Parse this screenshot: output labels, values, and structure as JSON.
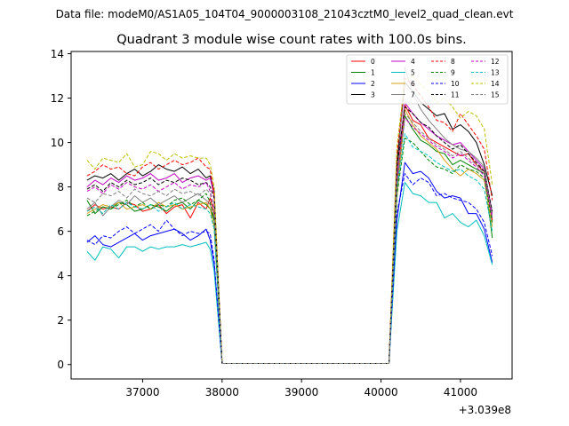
{
  "suptitle": "Data file: modeM0/AS1A05_104T04_9000003108_21043cztM0_level2_quad_clean.evt",
  "chart_data": {
    "type": "line",
    "title": "Quadrant 3 module wise count rates with 100.0s bins.",
    "xlabel": "",
    "ylabel": "",
    "x_offset_label": "+3.039e8",
    "xlim": [
      36100,
      41650
    ],
    "ylim": [
      -0.65,
      14.1
    ],
    "x_ticks": [
      37000,
      38000,
      39000,
      40000,
      41000
    ],
    "y_ticks": [
      0,
      2,
      4,
      6,
      8,
      10,
      12,
      14
    ],
    "grid": false,
    "legend_position": "top-right",
    "legend_columns": 4,
    "x": [
      36300,
      36400,
      36500,
      36600,
      36700,
      36800,
      36900,
      37000,
      37100,
      37200,
      37300,
      37400,
      37500,
      37600,
      37700,
      37800,
      37850,
      37900,
      38000,
      38100,
      38200,
      38300,
      38400,
      38500,
      38600,
      38700,
      38800,
      38900,
      39000,
      39100,
      39200,
      39300,
      39400,
      39500,
      39600,
      39700,
      39800,
      39900,
      40000,
      40100,
      40200,
      40300,
      40400,
      40500,
      40600,
      40700,
      40800,
      40900,
      41000,
      41100,
      41200,
      41300,
      41400
    ],
    "series": [
      {
        "name": "0",
        "color": "#ff0000",
        "dash": false,
        "values": [
          6.9,
          7.2,
          7.0,
          7.1,
          7.0,
          7.3,
          7.2,
          6.9,
          7.0,
          7.2,
          6.8,
          7.1,
          7.2,
          6.6,
          7.3,
          7.0,
          7.5,
          6.8,
          0.05,
          0.05,
          0.05,
          0.05,
          0.05,
          0.05,
          0.05,
          0.05,
          0.05,
          0.05,
          0.05,
          0.05,
          0.05,
          0.05,
          0.05,
          0.05,
          0.05,
          0.05,
          0.05,
          0.05,
          0.05,
          0.05,
          8.0,
          11.7,
          11.0,
          10.8,
          10.2,
          10.0,
          9.8,
          9.6,
          9.4,
          9.5,
          9.0,
          8.7,
          6.5
        ]
      },
      {
        "name": "1",
        "color": "#008000",
        "dash": false,
        "values": [
          7.4,
          6.8,
          7.1,
          7.0,
          7.3,
          7.2,
          6.9,
          7.0,
          7.2,
          7.1,
          6.9,
          7.2,
          7.3,
          7.0,
          7.4,
          7.2,
          7.0,
          6.5,
          0.05,
          0.05,
          0.05,
          0.05,
          0.05,
          0.05,
          0.05,
          0.05,
          0.05,
          0.05,
          0.05,
          0.05,
          0.05,
          0.05,
          0.05,
          0.05,
          0.05,
          0.05,
          0.05,
          0.05,
          0.05,
          0.05,
          7.8,
          11.2,
          10.6,
          10.1,
          9.9,
          9.6,
          9.5,
          9.0,
          9.2,
          9.0,
          8.8,
          8.6,
          5.7
        ]
      },
      {
        "name": "2",
        "color": "#0000ff",
        "dash": false,
        "values": [
          5.5,
          5.8,
          5.4,
          5.3,
          5.5,
          5.7,
          5.9,
          5.6,
          5.8,
          5.9,
          6.0,
          6.1,
          5.9,
          5.6,
          5.8,
          6.1,
          5.6,
          4.5,
          0.05,
          0.05,
          0.05,
          0.05,
          0.05,
          0.05,
          0.05,
          0.05,
          0.05,
          0.05,
          0.05,
          0.05,
          0.05,
          0.05,
          0.05,
          0.05,
          0.05,
          0.05,
          0.05,
          0.05,
          0.05,
          0.05,
          6.5,
          9.1,
          8.6,
          8.7,
          8.4,
          7.8,
          7.5,
          7.6,
          7.5,
          6.8,
          6.8,
          6.1,
          4.6
        ]
      },
      {
        "name": "3",
        "color": "#000000",
        "dash": false,
        "values": [
          8.3,
          8.5,
          8.4,
          8.6,
          8.3,
          8.6,
          8.8,
          8.5,
          8.7,
          9.0,
          8.8,
          8.7,
          8.9,
          8.6,
          8.8,
          8.4,
          8.5,
          7.8,
          0.05,
          0.05,
          0.05,
          0.05,
          0.05,
          0.05,
          0.05,
          0.05,
          0.05,
          0.05,
          0.05,
          0.05,
          0.05,
          0.05,
          0.05,
          0.05,
          0.05,
          0.05,
          0.05,
          0.05,
          0.05,
          0.05,
          9.0,
          12.7,
          12.3,
          11.8,
          11.5,
          11.2,
          11.3,
          10.6,
          10.8,
          10.5,
          10.0,
          9.0,
          7.6
        ]
      },
      {
        "name": "4",
        "color": "#c000c0",
        "dash": false,
        "values": [
          8.0,
          8.3,
          8.1,
          8.4,
          8.2,
          8.5,
          8.3,
          8.4,
          8.6,
          8.3,
          8.4,
          8.6,
          8.2,
          8.4,
          8.5,
          8.3,
          8.4,
          7.6,
          0.05,
          0.05,
          0.05,
          0.05,
          0.05,
          0.05,
          0.05,
          0.05,
          0.05,
          0.05,
          0.05,
          0.05,
          0.05,
          0.05,
          0.05,
          0.05,
          0.05,
          0.05,
          0.05,
          0.05,
          0.05,
          0.05,
          8.6,
          11.8,
          11.3,
          10.9,
          10.6,
          10.3,
          10.1,
          9.9,
          10.0,
          9.6,
          9.2,
          8.8,
          6.8
        ]
      },
      {
        "name": "5",
        "color": "#00bfbf",
        "dash": false,
        "values": [
          5.1,
          4.7,
          5.3,
          5.2,
          4.8,
          5.3,
          5.3,
          5.1,
          5.3,
          5.2,
          5.3,
          5.3,
          5.4,
          5.3,
          5.4,
          5.5,
          5.2,
          4.2,
          0.05,
          0.05,
          0.05,
          0.05,
          0.05,
          0.05,
          0.05,
          0.05,
          0.05,
          0.05,
          0.05,
          0.05,
          0.05,
          0.05,
          0.05,
          0.05,
          0.05,
          0.05,
          0.05,
          0.05,
          0.05,
          0.05,
          6.0,
          8.2,
          7.7,
          7.6,
          7.3,
          7.3,
          6.6,
          6.8,
          6.4,
          6.2,
          6.5,
          5.8,
          4.5
        ]
      },
      {
        "name": "6",
        "color": "#d4a017",
        "dash": false,
        "values": [
          6.8,
          7.0,
          7.2,
          7.1,
          7.3,
          7.0,
          7.1,
          7.2,
          7.0,
          7.3,
          7.1,
          7.2,
          7.0,
          7.1,
          7.2,
          7.3,
          7.0,
          6.2,
          0.05,
          0.05,
          0.05,
          0.05,
          0.05,
          0.05,
          0.05,
          0.05,
          0.05,
          0.05,
          0.05,
          0.05,
          0.05,
          0.05,
          0.05,
          0.05,
          0.05,
          0.05,
          0.05,
          0.05,
          0.05,
          0.05,
          7.5,
          11.5,
          10.8,
          10.3,
          10.0,
          9.7,
          9.2,
          8.8,
          8.5,
          8.8,
          8.6,
          8.3,
          6.2
        ]
      },
      {
        "name": "7",
        "color": "#808080",
        "dash": false,
        "values": [
          7.0,
          7.3,
          6.7,
          7.1,
          7.4,
          7.2,
          7.6,
          7.3,
          7.5,
          7.2,
          7.4,
          7.6,
          7.3,
          7.5,
          7.7,
          7.4,
          7.2,
          6.6,
          0.05,
          0.05,
          0.05,
          0.05,
          0.05,
          0.05,
          0.05,
          0.05,
          0.05,
          0.05,
          0.05,
          0.05,
          0.05,
          0.05,
          0.05,
          0.05,
          0.05,
          0.05,
          0.05,
          0.05,
          0.05,
          0.05,
          8.2,
          13.4,
          12.2,
          11.5,
          11.0,
          10.6,
          10.2,
          9.9,
          9.7,
          9.6,
          9.3,
          8.9,
          6.6
        ]
      },
      {
        "name": "8",
        "color": "#ff0000",
        "dash": true,
        "values": [
          8.5,
          8.7,
          9.0,
          8.8,
          8.9,
          8.6,
          8.5,
          8.9,
          9.1,
          8.8,
          9.0,
          9.2,
          9.0,
          9.1,
          9.3,
          8.9,
          8.8,
          7.6,
          0.05,
          0.05,
          0.05,
          0.05,
          0.05,
          0.05,
          0.05,
          0.05,
          0.05,
          0.05,
          0.05,
          0.05,
          0.05,
          0.05,
          0.05,
          0.05,
          0.05,
          0.05,
          0.05,
          0.05,
          0.05,
          0.05,
          9.4,
          12.9,
          12.6,
          12.1,
          11.6,
          11.0,
          10.9,
          10.5,
          11.3,
          10.8,
          10.3,
          9.7,
          7.4
        ]
      },
      {
        "name": "9",
        "color": "#008000",
        "dash": true,
        "values": [
          6.7,
          6.9,
          7.1,
          7.0,
          7.2,
          7.4,
          7.1,
          7.3,
          7.0,
          7.2,
          7.1,
          7.4,
          7.5,
          7.2,
          7.4,
          7.7,
          7.3,
          6.5,
          0.05,
          0.05,
          0.05,
          0.05,
          0.05,
          0.05,
          0.05,
          0.05,
          0.05,
          0.05,
          0.05,
          0.05,
          0.05,
          0.05,
          0.05,
          0.05,
          0.05,
          0.05,
          0.05,
          0.05,
          0.05,
          0.05,
          7.6,
          10.2,
          10.0,
          9.6,
          9.2,
          8.9,
          8.8,
          8.6,
          9.0,
          8.8,
          8.7,
          8.4,
          6.4
        ]
      },
      {
        "name": "10",
        "color": "#0000ff",
        "dash": true,
        "values": [
          5.6,
          5.4,
          5.8,
          5.7,
          6.0,
          6.2,
          5.9,
          6.1,
          6.3,
          6.0,
          6.5,
          6.1,
          5.8,
          6.0,
          5.9,
          6.0,
          5.9,
          4.7,
          0.05,
          0.05,
          0.05,
          0.05,
          0.05,
          0.05,
          0.05,
          0.05,
          0.05,
          0.05,
          0.05,
          0.05,
          0.05,
          0.05,
          0.05,
          0.05,
          0.05,
          0.05,
          0.05,
          0.05,
          0.05,
          0.05,
          6.8,
          8.6,
          8.1,
          8.4,
          8.2,
          7.6,
          7.7,
          7.5,
          7.4,
          7.3,
          7.0,
          6.4,
          4.9
        ]
      },
      {
        "name": "11",
        "color": "#000000",
        "dash": true,
        "values": [
          7.9,
          8.1,
          7.8,
          8.2,
          8.0,
          8.3,
          8.1,
          8.2,
          8.4,
          8.1,
          8.3,
          8.2,
          8.4,
          8.3,
          8.1,
          8.2,
          8.0,
          7.5,
          0.05,
          0.05,
          0.05,
          0.05,
          0.05,
          0.05,
          0.05,
          0.05,
          0.05,
          0.05,
          0.05,
          0.05,
          0.05,
          0.05,
          0.05,
          0.05,
          0.05,
          0.05,
          0.05,
          0.05,
          0.05,
          0.05,
          8.9,
          11.6,
          11.3,
          10.9,
          10.7,
          10.3,
          10.0,
          9.7,
          9.9,
          9.5,
          9.1,
          8.7,
          6.9
        ]
      },
      {
        "name": "12",
        "color": "#c000c0",
        "dash": true,
        "values": [
          7.8,
          8.0,
          7.7,
          8.1,
          7.9,
          8.2,
          8.0,
          7.9,
          8.1,
          7.8,
          8.0,
          8.2,
          7.9,
          8.1,
          8.0,
          8.2,
          7.8,
          7.0,
          0.05,
          0.05,
          0.05,
          0.05,
          0.05,
          0.05,
          0.05,
          0.05,
          0.05,
          0.05,
          0.05,
          0.05,
          0.05,
          0.05,
          0.05,
          0.05,
          0.05,
          0.05,
          0.05,
          0.05,
          0.05,
          0.05,
          8.4,
          11.1,
          10.7,
          10.4,
          10.1,
          9.8,
          9.6,
          9.3,
          9.5,
          9.2,
          8.9,
          8.5,
          6.6
        ]
      },
      {
        "name": "13",
        "color": "#00bfbf",
        "dash": true,
        "values": [
          6.9,
          7.1,
          6.8,
          7.2,
          7.0,
          7.3,
          7.1,
          7.0,
          7.2,
          6.9,
          7.1,
          7.3,
          7.0,
          7.2,
          7.1,
          7.0,
          6.8,
          6.1,
          0.05,
          0.05,
          0.05,
          0.05,
          0.05,
          0.05,
          0.05,
          0.05,
          0.05,
          0.05,
          0.05,
          0.05,
          0.05,
          0.05,
          0.05,
          0.05,
          0.05,
          0.05,
          0.05,
          0.05,
          0.05,
          0.05,
          7.9,
          10.4,
          9.8,
          9.6,
          9.4,
          9.1,
          8.9,
          8.7,
          8.8,
          8.5,
          8.3,
          7.9,
          6.0
        ]
      },
      {
        "name": "14",
        "color": "#bfbf00",
        "dash": true,
        "values": [
          9.2,
          8.8,
          9.3,
          9.2,
          9.1,
          9.5,
          8.9,
          9.0,
          9.6,
          9.5,
          9.2,
          9.5,
          9.3,
          9.4,
          9.3,
          9.3,
          9.0,
          8.0,
          0.05,
          0.05,
          0.05,
          0.05,
          0.05,
          0.05,
          0.05,
          0.05,
          0.05,
          0.05,
          0.05,
          0.05,
          0.05,
          0.05,
          0.05,
          0.05,
          0.05,
          0.05,
          0.05,
          0.05,
          0.05,
          0.05,
          9.8,
          12.8,
          13.0,
          12.6,
          12.3,
          11.8,
          12.0,
          11.6,
          11.1,
          11.4,
          11.2,
          10.6,
          8.1
        ]
      },
      {
        "name": "15",
        "color": "#808080",
        "dash": true,
        "values": [
          7.5,
          7.3,
          7.7,
          7.6,
          7.8,
          7.5,
          7.9,
          7.7,
          7.6,
          7.8,
          7.6,
          7.9,
          7.7,
          7.8,
          7.6,
          7.9,
          7.7,
          6.9,
          0.05,
          0.05,
          0.05,
          0.05,
          0.05,
          0.05,
          0.05,
          0.05,
          0.05,
          0.05,
          0.05,
          0.05,
          0.05,
          0.05,
          0.05,
          0.05,
          0.05,
          0.05,
          0.05,
          0.05,
          0.05,
          0.05,
          8.1,
          11.3,
          10.9,
          10.5,
          10.2,
          9.9,
          9.7,
          9.4,
          9.6,
          9.3,
          9.0,
          8.6,
          6.7
        ]
      }
    ]
  }
}
